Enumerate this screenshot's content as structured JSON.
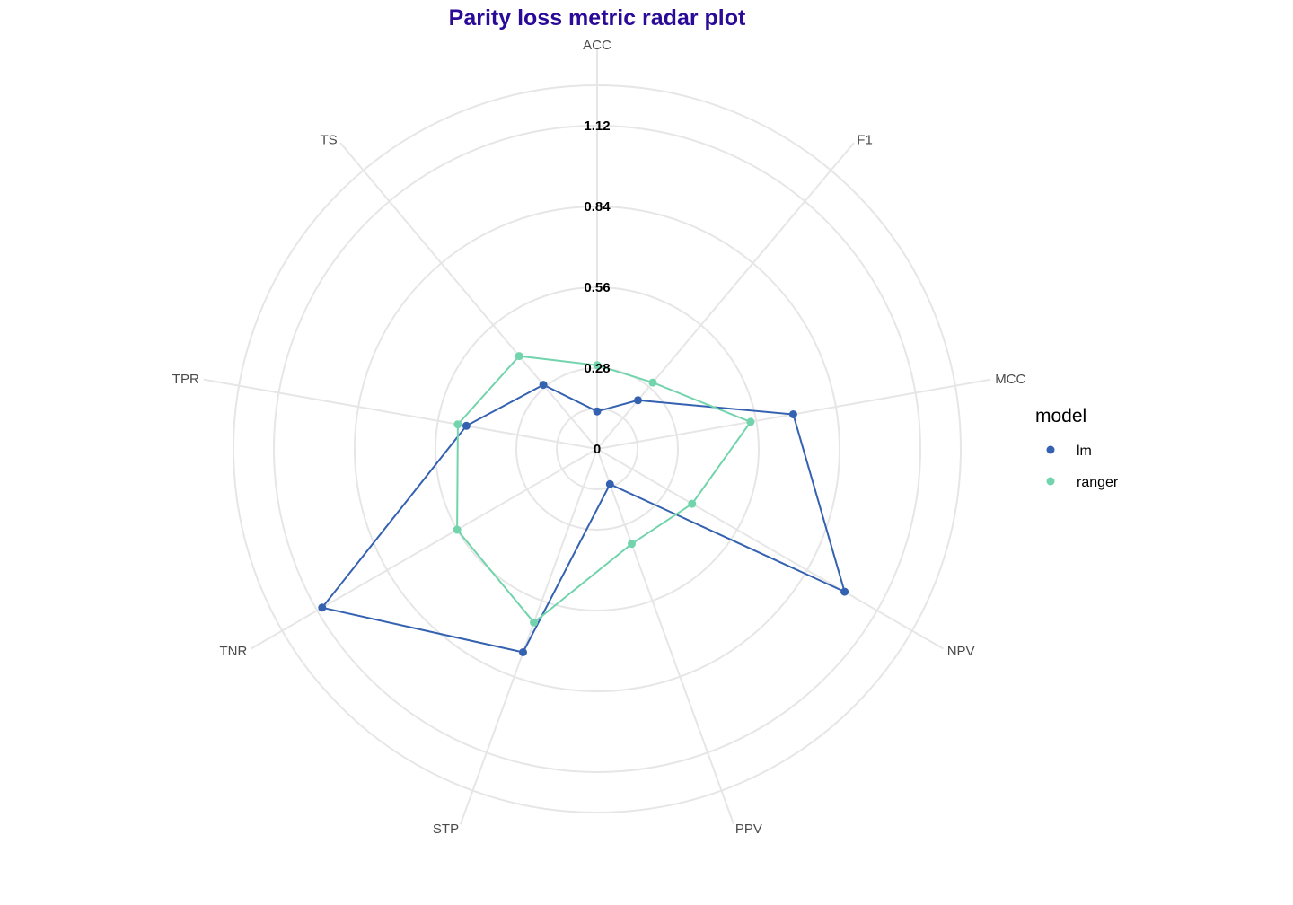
{
  "chart_data": {
    "type": "radar",
    "title": "Parity loss metric radar plot",
    "axes": [
      "ACC",
      "F1",
      "MCC",
      "NPV",
      "PPV",
      "STP",
      "TNR",
      "TPR",
      "TS"
    ],
    "radial_ticks": [
      "0",
      "0.28",
      "0.56",
      "0.84",
      "1.12"
    ],
    "rlim": [
      0,
      1.12
    ],
    "grid": true,
    "legend": {
      "title": "model",
      "position": "right"
    },
    "series": [
      {
        "name": "lm",
        "color": "#3461b0",
        "values": [
          0.13,
          0.22,
          0.69,
          0.99,
          0.13,
          0.75,
          1.1,
          0.46,
          0.29
        ]
      },
      {
        "name": "ranger",
        "color": "#72d4ac",
        "values": [
          0.29,
          0.3,
          0.54,
          0.38,
          0.35,
          0.64,
          0.56,
          0.49,
          0.42
        ]
      }
    ]
  }
}
